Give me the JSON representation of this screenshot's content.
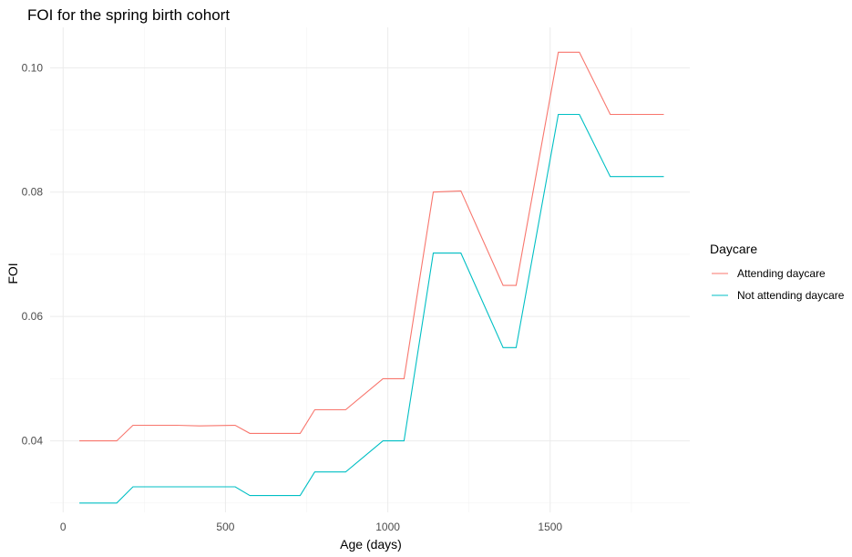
{
  "chart_data": {
    "type": "line",
    "title": "FOI for the spring birth cohort",
    "xlabel": "Age (days)",
    "ylabel": "FOI",
    "xlim": [
      -40,
      1930
    ],
    "ylim": [
      0.0285,
      0.1065
    ],
    "x_ticks": [
      0,
      500,
      1000,
      1500
    ],
    "x_tick_labels": [
      "0",
      "500",
      "1000",
      "1500"
    ],
    "y_ticks": [
      0.04,
      0.06,
      0.08,
      0.1
    ],
    "y_tick_labels": [
      "0.04",
      "0.06",
      "0.08",
      "0.10"
    ],
    "x_minor": [
      250,
      750,
      1250,
      1750
    ],
    "y_minor": [
      0.03,
      0.05,
      0.07,
      0.09
    ],
    "grid": true,
    "legend": {
      "title": "Daycare",
      "position": "right"
    },
    "series": [
      {
        "name": "Attending daycare",
        "color": "#F8766D",
        "x": [
          50,
          165,
          215,
          350,
          420,
          530,
          575,
          730,
          775,
          870,
          985,
          1050,
          1140,
          1225,
          1355,
          1395,
          1525,
          1590,
          1685,
          1850
        ],
        "y": [
          0.04,
          0.04,
          0.0425,
          0.0425,
          0.0424,
          0.0425,
          0.0412,
          0.0412,
          0.045,
          0.045,
          0.05,
          0.05,
          0.08,
          0.0802,
          0.065,
          0.065,
          0.1025,
          0.1025,
          0.0925,
          0.0925
        ]
      },
      {
        "name": "Not attending daycare",
        "color": "#00BFC4",
        "x": [
          50,
          165,
          215,
          350,
          420,
          530,
          575,
          730,
          775,
          870,
          985,
          1050,
          1140,
          1225,
          1355,
          1395,
          1525,
          1590,
          1685,
          1850
        ],
        "y": [
          0.03,
          0.03,
          0.0326,
          0.0326,
          0.0326,
          0.0326,
          0.0312,
          0.0312,
          0.035,
          0.035,
          0.04,
          0.04,
          0.0702,
          0.0702,
          0.055,
          0.055,
          0.0925,
          0.0925,
          0.0825,
          0.0825
        ]
      }
    ]
  }
}
